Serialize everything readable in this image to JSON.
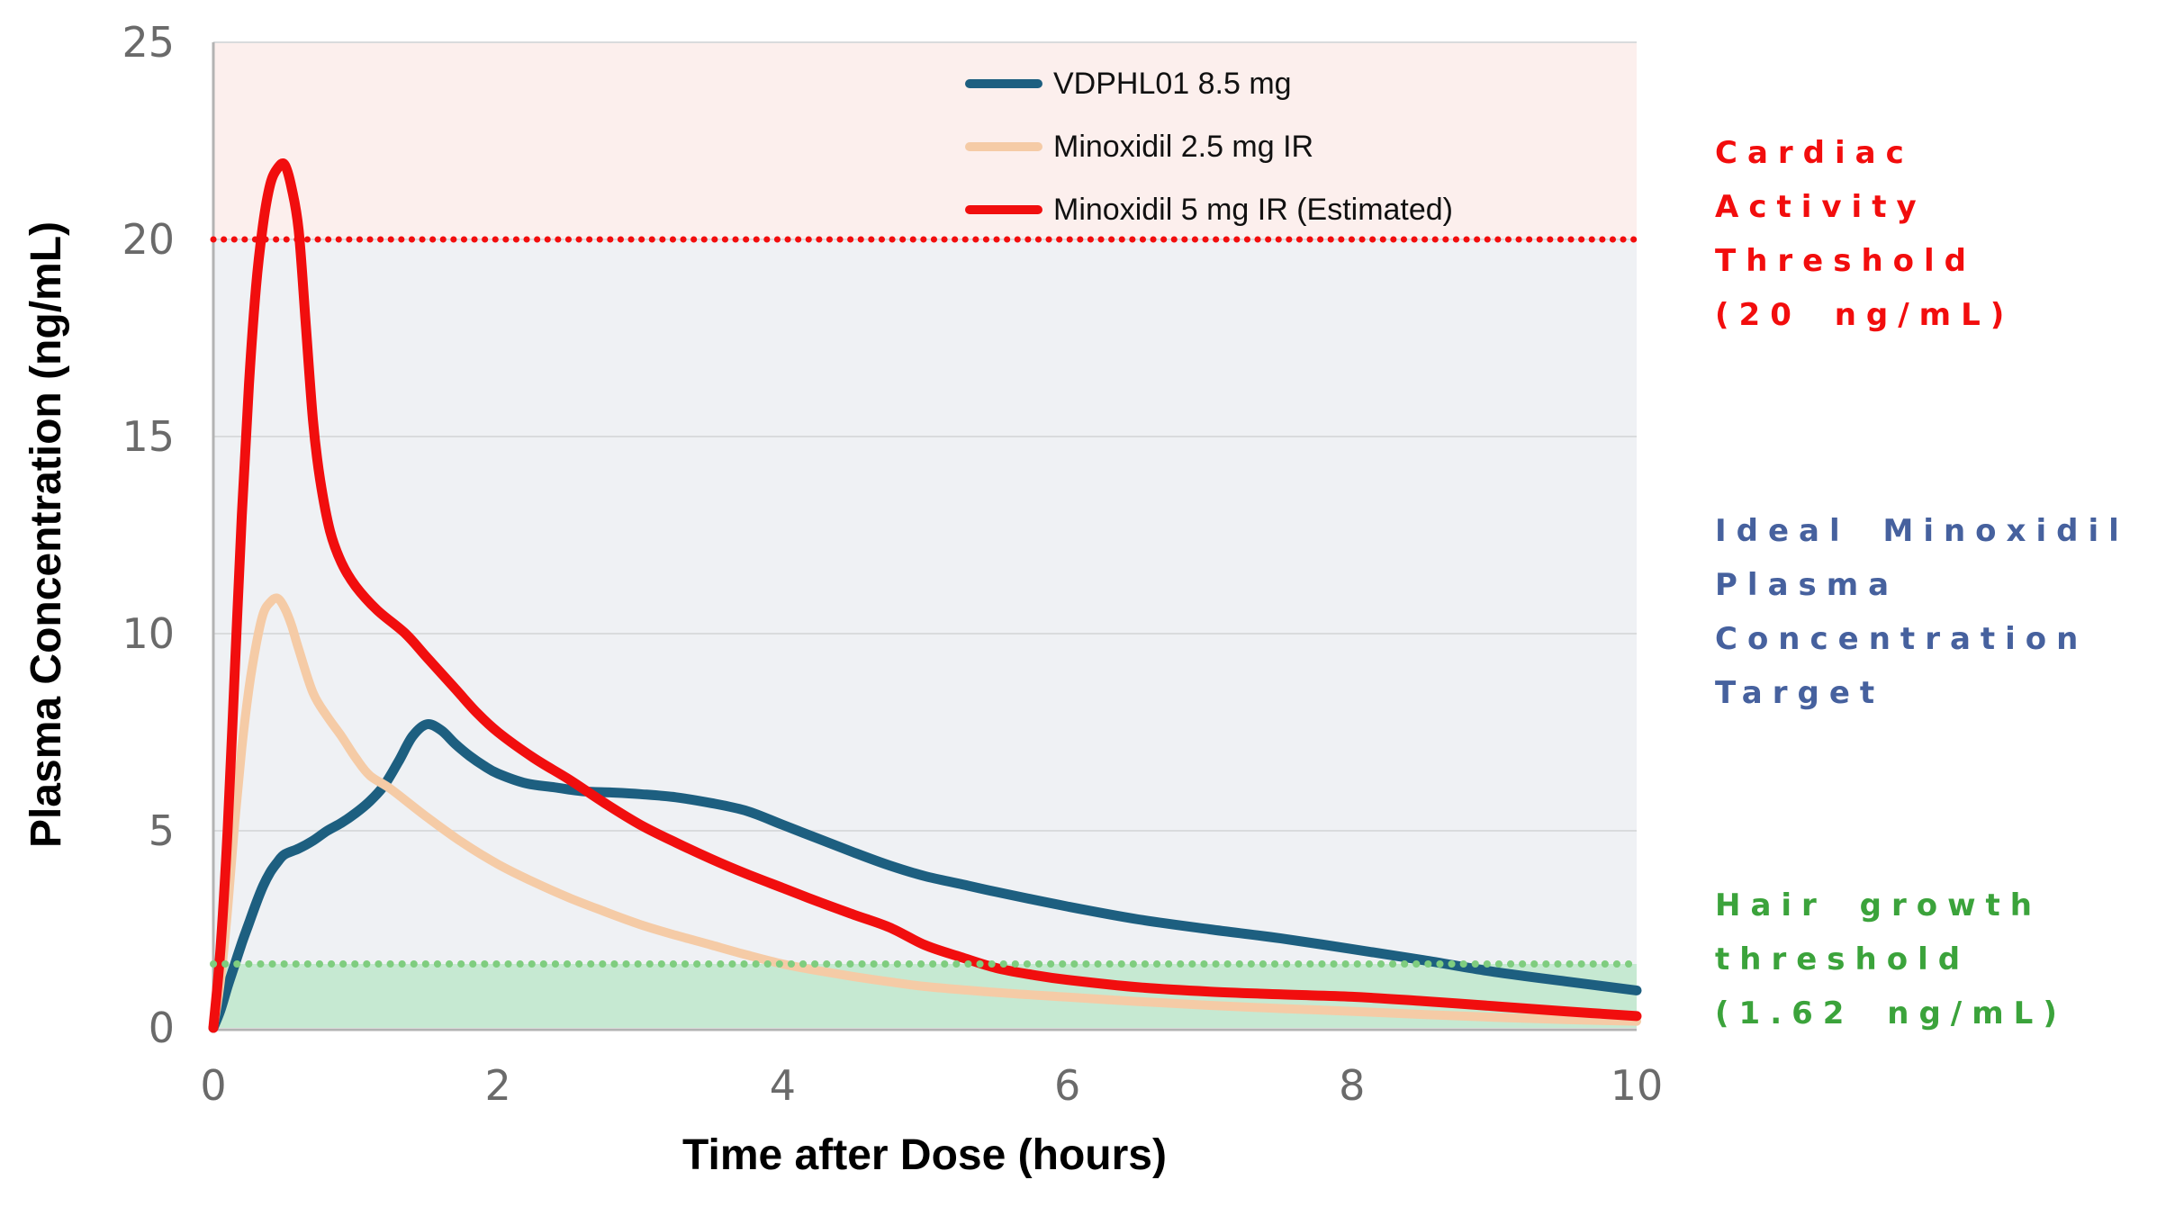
{
  "y_axis": {
    "title": "Plasma Concentration (ng/mL)",
    "ticks": [
      "0",
      "5",
      "10",
      "15",
      "20",
      "25"
    ]
  },
  "x_axis": {
    "title": "Time after Dose (hours)",
    "ticks": [
      "0",
      "2",
      "4",
      "6",
      "8",
      "10"
    ]
  },
  "legend": [
    {
      "label": "VDPHL01 8.5 mg",
      "color": "#1D5F80"
    },
    {
      "label": "Minoxidil 2.5 mg IR",
      "color": "#F5CBA6"
    },
    {
      "label": "Minoxidil 5 mg IR (Estimated)",
      "color": "#F10E0E"
    }
  ],
  "annotations": {
    "cardiac": {
      "lines": [
        "Cardiac",
        "Activity",
        "Threshold",
        "(20 ng/mL)"
      ],
      "color": "#F20D0D"
    },
    "ideal": {
      "lines": [
        "Ideal Minoxidil",
        "Plasma",
        "Concentration",
        "Target"
      ],
      "color": "#46619E"
    },
    "hair": {
      "lines": [
        "Hair growth",
        "threshold",
        "(1.62 ng/mL)"
      ],
      "color": "#3BA33B"
    }
  },
  "colors": {
    "region_above_cardiac": "#FCEFED",
    "region_target": "#EFF1F4",
    "region_hair_growth": "#C6E9D2",
    "cardiac_dotted_line": "#F20D0D",
    "hair_dotted_line": "#7FCD7F",
    "gridline": "#D9DBDD",
    "axis_line": "#B3B3B3",
    "tick_text": "#6A6A6A"
  },
  "chart_data": {
    "type": "line",
    "title": "",
    "xlabel": "Time after Dose (hours)",
    "ylabel": "Plasma Concentration (ng/mL)",
    "xlim": [
      0,
      10
    ],
    "ylim": [
      0,
      25
    ],
    "x_ticks": [
      0,
      2,
      4,
      6,
      8,
      10
    ],
    "y_ticks": [
      0,
      5,
      10,
      15,
      20,
      25
    ],
    "grid": "horizontal",
    "legend_position": "top-center-inside",
    "thresholds": [
      {
        "name": "Cardiac Activity Threshold",
        "value": 20,
        "style": "dotted",
        "color": "#F20D0D"
      },
      {
        "name": "Hair growth threshold",
        "value": 1.62,
        "style": "dotted",
        "color": "#7FCD7F"
      }
    ],
    "regions": [
      {
        "name": "above-cardiac-threshold",
        "from": 20,
        "to": 25,
        "color": "#FCEFED"
      },
      {
        "name": "ideal-target-zone",
        "from": 1.62,
        "to": 20,
        "color": "#EFF1F4"
      },
      {
        "name": "hair-growth-zone",
        "from": 0,
        "to": 1.62,
        "color": "#C6E9D2"
      }
    ],
    "series": [
      {
        "name": "VDPHL01 8.5 mg",
        "color": "#1D5F80",
        "stroke_width": 11,
        "points": [
          [
            0,
            0
          ],
          [
            0.05,
            0.45
          ],
          [
            0.1,
            1.05
          ],
          [
            0.15,
            1.6
          ],
          [
            0.2,
            2.15
          ],
          [
            0.25,
            2.65
          ],
          [
            0.3,
            3.15
          ],
          [
            0.35,
            3.6
          ],
          [
            0.4,
            3.95
          ],
          [
            0.45,
            4.2
          ],
          [
            0.5,
            4.4
          ],
          [
            0.6,
            4.55
          ],
          [
            0.7,
            4.75
          ],
          [
            0.8,
            5.0
          ],
          [
            0.9,
            5.2
          ],
          [
            1.0,
            5.45
          ],
          [
            1.1,
            5.75
          ],
          [
            1.2,
            6.15
          ],
          [
            1.3,
            6.75
          ],
          [
            1.4,
            7.4
          ],
          [
            1.5,
            7.7
          ],
          [
            1.6,
            7.55
          ],
          [
            1.7,
            7.2
          ],
          [
            1.8,
            6.9
          ],
          [
            1.9,
            6.65
          ],
          [
            2.0,
            6.45
          ],
          [
            2.2,
            6.2
          ],
          [
            2.4,
            6.1
          ],
          [
            2.6,
            6.0
          ],
          [
            2.8,
            5.97
          ],
          [
            3.0,
            5.93
          ],
          [
            3.25,
            5.85
          ],
          [
            3.5,
            5.7
          ],
          [
            3.75,
            5.5
          ],
          [
            4.0,
            5.15
          ],
          [
            4.25,
            4.8
          ],
          [
            4.5,
            4.45
          ],
          [
            4.75,
            4.12
          ],
          [
            5.0,
            3.85
          ],
          [
            5.25,
            3.65
          ],
          [
            5.5,
            3.45
          ],
          [
            6.0,
            3.08
          ],
          [
            6.5,
            2.75
          ],
          [
            7.0,
            2.5
          ],
          [
            7.5,
            2.27
          ],
          [
            8.0,
            2.0
          ],
          [
            8.5,
            1.72
          ],
          [
            9.0,
            1.42
          ],
          [
            9.5,
            1.18
          ],
          [
            10,
            0.95
          ]
        ]
      },
      {
        "name": "Minoxidil 2.5 mg IR",
        "color": "#F5CBA6",
        "stroke_width": 10,
        "points": [
          [
            0,
            0
          ],
          [
            0.05,
            1.2
          ],
          [
            0.1,
            3.0
          ],
          [
            0.15,
            5.2
          ],
          [
            0.2,
            7.1
          ],
          [
            0.25,
            8.6
          ],
          [
            0.3,
            9.7
          ],
          [
            0.35,
            10.5
          ],
          [
            0.4,
            10.8
          ],
          [
            0.45,
            10.9
          ],
          [
            0.5,
            10.65
          ],
          [
            0.55,
            10.2
          ],
          [
            0.6,
            9.6
          ],
          [
            0.7,
            8.5
          ],
          [
            0.8,
            7.9
          ],
          [
            0.9,
            7.4
          ],
          [
            1.0,
            6.85
          ],
          [
            1.1,
            6.4
          ],
          [
            1.25,
            6.05
          ],
          [
            1.5,
            5.35
          ],
          [
            1.75,
            4.7
          ],
          [
            2.0,
            4.15
          ],
          [
            2.25,
            3.7
          ],
          [
            2.5,
            3.3
          ],
          [
            2.75,
            2.95
          ],
          [
            3.0,
            2.62
          ],
          [
            3.25,
            2.35
          ],
          [
            3.5,
            2.1
          ],
          [
            3.75,
            1.85
          ],
          [
            4.0,
            1.62
          ],
          [
            4.25,
            1.45
          ],
          [
            4.5,
            1.3
          ],
          [
            4.75,
            1.17
          ],
          [
            5.0,
            1.05
          ],
          [
            5.5,
            0.9
          ],
          [
            6.0,
            0.78
          ],
          [
            6.5,
            0.67
          ],
          [
            7.0,
            0.57
          ],
          [
            7.5,
            0.49
          ],
          [
            8.0,
            0.42
          ],
          [
            8.5,
            0.34
          ],
          [
            9.0,
            0.27
          ],
          [
            9.5,
            0.21
          ],
          [
            10,
            0.17
          ]
        ]
      },
      {
        "name": "Minoxidil 5 mg IR (Estimated)",
        "color": "#F10E0E",
        "stroke_width": 11,
        "points": [
          [
            0,
            0
          ],
          [
            0.05,
            2.0
          ],
          [
            0.1,
            5.0
          ],
          [
            0.15,
            9.0
          ],
          [
            0.2,
            13.0
          ],
          [
            0.25,
            16.3
          ],
          [
            0.3,
            18.8
          ],
          [
            0.35,
            20.4
          ],
          [
            0.4,
            21.4
          ],
          [
            0.45,
            21.8
          ],
          [
            0.5,
            21.9
          ],
          [
            0.55,
            21.3
          ],
          [
            0.6,
            20.2
          ],
          [
            0.65,
            17.8
          ],
          [
            0.7,
            15.4
          ],
          [
            0.75,
            13.9
          ],
          [
            0.82,
            12.6
          ],
          [
            0.9,
            11.8
          ],
          [
            1.0,
            11.2
          ],
          [
            1.15,
            10.6
          ],
          [
            1.35,
            10.0
          ],
          [
            1.5,
            9.4
          ],
          [
            1.7,
            8.6
          ],
          [
            1.85,
            8.0
          ],
          [
            2.0,
            7.5
          ],
          [
            2.25,
            6.85
          ],
          [
            2.5,
            6.3
          ],
          [
            2.75,
            5.7
          ],
          [
            3.0,
            5.15
          ],
          [
            3.25,
            4.7
          ],
          [
            3.5,
            4.28
          ],
          [
            3.75,
            3.9
          ],
          [
            4.0,
            3.55
          ],
          [
            4.25,
            3.2
          ],
          [
            4.5,
            2.87
          ],
          [
            4.75,
            2.55
          ],
          [
            5.0,
            2.1
          ],
          [
            5.25,
            1.8
          ],
          [
            5.5,
            1.52
          ],
          [
            5.75,
            1.35
          ],
          [
            6.0,
            1.22
          ],
          [
            6.5,
            1.03
          ],
          [
            7.0,
            0.92
          ],
          [
            7.5,
            0.85
          ],
          [
            8.0,
            0.79
          ],
          [
            8.5,
            0.68
          ],
          [
            9.0,
            0.55
          ],
          [
            9.5,
            0.42
          ],
          [
            10,
            0.3
          ]
        ]
      }
    ]
  }
}
